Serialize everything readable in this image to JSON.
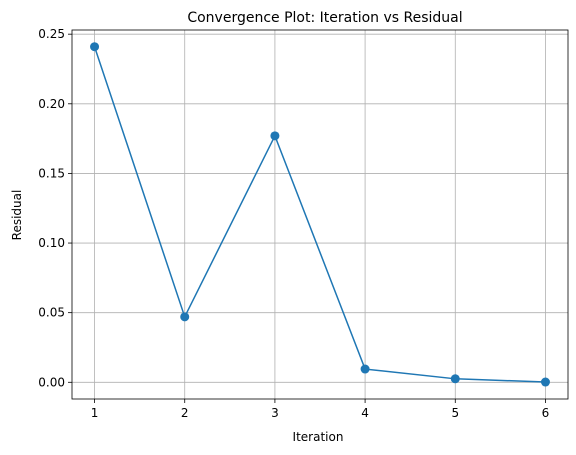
{
  "chart_data": {
    "type": "line",
    "title": "Convergence Plot: Iteration vs Residual",
    "xlabel": "Iteration",
    "ylabel": "Residual",
    "x": [
      1,
      2,
      3,
      4,
      5,
      6
    ],
    "series": [
      {
        "values": [
          0.241,
          0.047,
          0.177,
          0.0095,
          0.0025,
          0.0002
        ],
        "color": "#1f77b4",
        "marker": "circle"
      }
    ],
    "xticks": [
      "1",
      "2",
      "3",
      "4",
      "5",
      "6"
    ],
    "yticks": [
      "0.00",
      "0.05",
      "0.10",
      "0.15",
      "0.20",
      "0.25"
    ],
    "xlim": [
      0.75,
      6.25
    ],
    "ylim": [
      -0.012,
      0.253
    ],
    "grid": true,
    "legend": "none"
  }
}
